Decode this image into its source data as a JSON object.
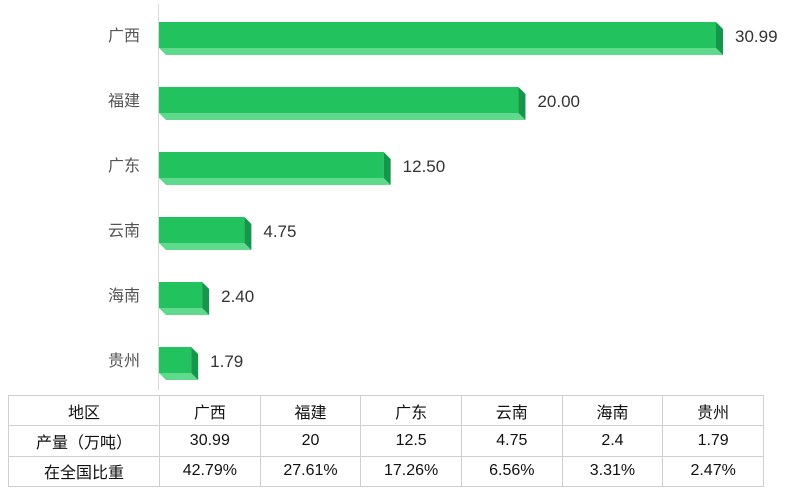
{
  "chart_data": {
    "type": "bar",
    "orientation": "horizontal",
    "categories": [
      "广西",
      "福建",
      "广东",
      "云南",
      "海南",
      "贵州"
    ],
    "values": [
      30.99,
      20.0,
      12.5,
      4.75,
      2.4,
      1.79
    ],
    "value_labels": [
      "30.99",
      "20.00",
      "12.50",
      "4.75",
      "2.40",
      "1.79"
    ],
    "xlim": [
      0,
      30.99
    ],
    "grid": false,
    "bar_color": "#22c35e",
    "bar_shade_color": "#16964a",
    "bar_light_color": "#5fd98c"
  },
  "table": {
    "header_label": "地区",
    "headers": [
      "广西",
      "福建",
      "广东",
      "云南",
      "海南",
      "贵州"
    ],
    "rows": [
      {
        "label": "产量（万吨）",
        "cells": [
          "30.99",
          "20",
          "12.5",
          "4.75",
          "2.4",
          "1.79"
        ]
      },
      {
        "label": "在全国比重",
        "cells": [
          "42.79%",
          "27.61%",
          "17.26%",
          "6.56%",
          "3.31%",
          "2.47%"
        ]
      }
    ]
  }
}
